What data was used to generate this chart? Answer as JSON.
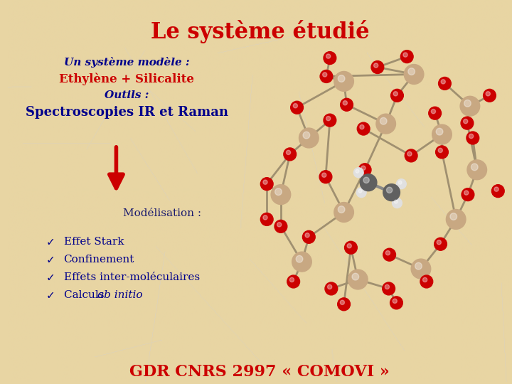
{
  "title": "Le système étudié",
  "title_color": "#CC0000",
  "title_fontsize": 22,
  "background_color": "#E8D5A3",
  "subtitle1": "Un système modèle :",
  "subtitle1_color": "#00008B",
  "subtitle2": "Ethylène + Silicalite",
  "subtitle2_color": "#CC0000",
  "subtitle3": "Outils :",
  "subtitle3_color": "#00008B",
  "subtitle4": "Spectroscopies IR et Raman",
  "subtitle4_color": "#00008B",
  "modelisation_label": "Modélisation :",
  "modelisation_color": "#1a1a6e",
  "bullet_items": [
    "Effet Stark",
    "Confinement",
    "Effets inter-moléculaires",
    "Calculs "
  ],
  "bullet_italic_suffix": [
    "",
    "",
    "",
    "ab initio"
  ],
  "bullet_color": "#00008B",
  "footer": "GDR CNRS 2997 « COMOVI »",
  "footer_color": "#CC0000",
  "footer_fontsize": 16,
  "arrow_color": "#CC0000",
  "si_color": "#C8A882",
  "o_color": "#CC0000",
  "c_color": "#606060",
  "h_color": "#E0E0E0",
  "bond_color": "#A09070"
}
